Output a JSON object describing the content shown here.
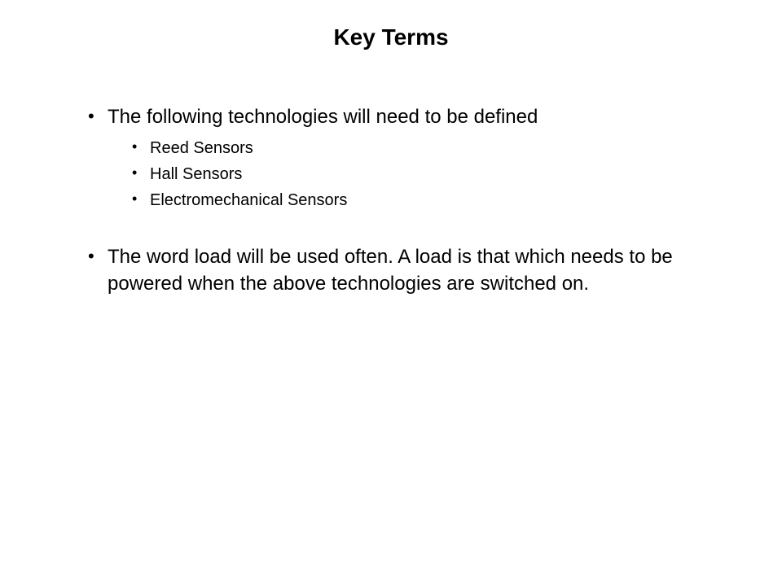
{
  "title": "Key Terms",
  "bullets": {
    "item1": {
      "text": "The following technologies will need to be defined",
      "sub": {
        "s1": "Reed Sensors",
        "s2": "Hall Sensors",
        "s3": "Electromechanical Sensors"
      }
    },
    "item2": {
      "text": "The word load will be used often. A load is that which needs to be powered when the above technologies are switched on."
    }
  }
}
